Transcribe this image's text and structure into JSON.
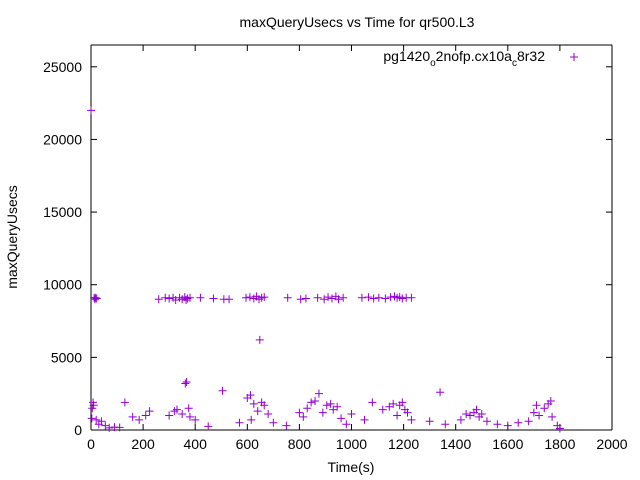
{
  "chart_data": {
    "type": "scatter",
    "title": "maxQueryUsecs vs Time for qr500.L3",
    "xlabel": "Time(s)",
    "ylabel": "maxQueryUsecs",
    "xlim": [
      0,
      2000
    ],
    "ylim": [
      0,
      26500
    ],
    "x_ticks": [
      "0",
      "200",
      "400",
      "600",
      "800",
      "1000",
      "1200",
      "1400",
      "1600",
      "1800",
      "2000"
    ],
    "y_ticks": [
      "0",
      "5000",
      "10000",
      "15000",
      "20000",
      "25000"
    ],
    "grid": false,
    "legend_position": "top-right",
    "marker": "plus",
    "series": [
      {
        "name": "pg1420_o2nofp.cx10a_c8r32",
        "legend": {
          "prefix": "pg1420",
          "sub1": "o",
          "mid": "2nofp.cx10a",
          "sub2": "c",
          "suffix": "8r32"
        },
        "color": "#9400d3",
        "points": [
          [
            0,
            22000
          ],
          [
            5,
            1500
          ],
          [
            8,
            1900
          ],
          [
            10,
            1700
          ],
          [
            12,
            9100
          ],
          [
            15,
            9000
          ],
          [
            18,
            9100
          ],
          [
            22,
            9050
          ],
          [
            3,
            800
          ],
          [
            20,
            700
          ],
          [
            30,
            400
          ],
          [
            40,
            600
          ],
          [
            55,
            300
          ],
          [
            70,
            150
          ],
          [
            90,
            200
          ],
          [
            110,
            180
          ],
          [
            130,
            1900
          ],
          [
            160,
            900
          ],
          [
            185,
            700
          ],
          [
            210,
            1000
          ],
          [
            225,
            1300
          ],
          [
            260,
            9000
          ],
          [
            285,
            9100
          ],
          [
            300,
            9050
          ],
          [
            315,
            9100
          ],
          [
            325,
            8950
          ],
          [
            340,
            9100
          ],
          [
            350,
            9000
          ],
          [
            360,
            9150
          ],
          [
            370,
            9050
          ],
          [
            380,
            9100
          ],
          [
            365,
            8950
          ],
          [
            420,
            9100
          ],
          [
            470,
            9050
          ],
          [
            510,
            9000
          ],
          [
            530,
            9000
          ],
          [
            595,
            9100
          ],
          [
            610,
            9150
          ],
          [
            625,
            9050
          ],
          [
            635,
            9200
          ],
          [
            645,
            9000
          ],
          [
            655,
            9100
          ],
          [
            665,
            9150
          ],
          [
            300,
            1000
          ],
          [
            320,
            1300
          ],
          [
            330,
            1400
          ],
          [
            350,
            1100
          ],
          [
            362,
            3200
          ],
          [
            367,
            3300
          ],
          [
            375,
            1500
          ],
          [
            380,
            900
          ],
          [
            400,
            700
          ],
          [
            450,
            250
          ],
          [
            505,
            2700
          ],
          [
            570,
            500
          ],
          [
            600,
            2200
          ],
          [
            612,
            2400
          ],
          [
            625,
            1800
          ],
          [
            640,
            1300
          ],
          [
            648,
            6200
          ],
          [
            655,
            1900
          ],
          [
            665,
            1700
          ],
          [
            680,
            1100
          ],
          [
            615,
            700
          ],
          [
            700,
            500
          ],
          [
            750,
            300
          ],
          [
            800,
            1200
          ],
          [
            815,
            900
          ],
          [
            830,
            1500
          ],
          [
            845,
            1900
          ],
          [
            860,
            2000
          ],
          [
            875,
            2500
          ],
          [
            890,
            1200
          ],
          [
            905,
            1700
          ],
          [
            920,
            1800
          ],
          [
            930,
            1400
          ],
          [
            945,
            1600
          ],
          [
            960,
            800
          ],
          [
            755,
            9100
          ],
          [
            805,
            9000
          ],
          [
            825,
            9050
          ],
          [
            870,
            9100
          ],
          [
            895,
            9000
          ],
          [
            910,
            9150
          ],
          [
            925,
            9050
          ],
          [
            940,
            9200
          ],
          [
            950,
            9000
          ],
          [
            968,
            9100
          ],
          [
            1040,
            9100
          ],
          [
            1065,
            9150
          ],
          [
            1085,
            9050
          ],
          [
            1105,
            9100
          ],
          [
            1130,
            9050
          ],
          [
            1150,
            9150
          ],
          [
            1165,
            9200
          ],
          [
            1175,
            9100
          ],
          [
            1185,
            9150
          ],
          [
            1195,
            9050
          ],
          [
            1210,
            9100
          ],
          [
            1230,
            9100
          ],
          [
            980,
            400
          ],
          [
            1000,
            1100
          ],
          [
            1050,
            700
          ],
          [
            1080,
            1900
          ],
          [
            1120,
            1400
          ],
          [
            1145,
            1600
          ],
          [
            1160,
            1800
          ],
          [
            1175,
            1000
          ],
          [
            1185,
            1700
          ],
          [
            1195,
            1900
          ],
          [
            1205,
            1400
          ],
          [
            1215,
            1200
          ],
          [
            1230,
            700
          ],
          [
            1300,
            600
          ],
          [
            1340,
            2600
          ],
          [
            1360,
            400
          ],
          [
            1420,
            700
          ],
          [
            1440,
            1100
          ],
          [
            1455,
            1000
          ],
          [
            1470,
            1200
          ],
          [
            1480,
            1400
          ],
          [
            1490,
            900
          ],
          [
            1500,
            1100
          ],
          [
            1520,
            600
          ],
          [
            1560,
            400
          ],
          [
            1600,
            300
          ],
          [
            1640,
            500
          ],
          [
            1680,
            600
          ],
          [
            1700,
            1200
          ],
          [
            1710,
            1700
          ],
          [
            1720,
            1000
          ],
          [
            1740,
            1500
          ],
          [
            1755,
            1800
          ],
          [
            1765,
            2000
          ],
          [
            1770,
            900
          ],
          [
            1790,
            300
          ],
          [
            1800,
            100
          ]
        ]
      }
    ]
  }
}
